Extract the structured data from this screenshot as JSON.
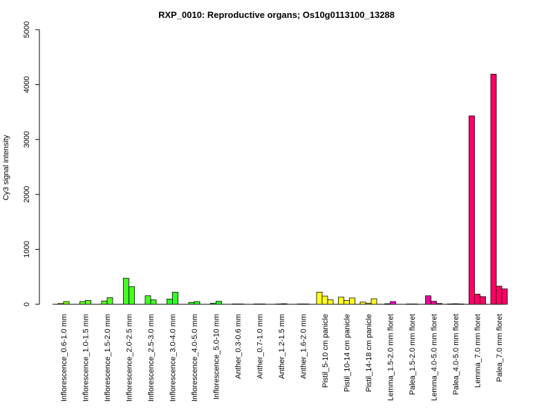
{
  "chart_data": {
    "type": "bar",
    "title": "RXP_0010: Reproductive organs; Os10g0113100_13288",
    "xlabel": "",
    "ylabel": "Cy3 signal intensity",
    "ylim": [
      0,
      5000
    ],
    "yticks": [
      0,
      1000,
      2000,
      3000,
      4000,
      5000
    ],
    "grid": false,
    "legend": "none",
    "groups": [
      {
        "label": "Inflorescence_0.6-1.0 mm",
        "color": "#7CFC00",
        "values": [
          15,
          50
        ]
      },
      {
        "label": "Inflorescence_1.0-1.5 mm",
        "color": "#66FF22",
        "values": [
          50,
          70
        ]
      },
      {
        "label": "Inflorescence_1.5-2.0 mm",
        "color": "#55FF22",
        "values": [
          60,
          120
        ]
      },
      {
        "label": "Inflorescence_2.0-2.5 mm",
        "color": "#44FF22",
        "values": [
          475,
          320
        ]
      },
      {
        "label": "Inflorescence_2.5-3.0 mm",
        "color": "#44FF22",
        "values": [
          155,
          80
        ]
      },
      {
        "label": "Inflorescence_3.0-4.0 mm",
        "color": "#33FF22",
        "values": [
          95,
          220
        ]
      },
      {
        "label": "Inflorescence_4.0-5.0 mm",
        "color": "#33FF22",
        "values": [
          35,
          50
        ]
      },
      {
        "label": "Inflorescence_5.0-10 mm",
        "color": "#22FF22",
        "values": [
          20,
          55
        ]
      },
      {
        "label": "Anther_0.3-0.6 mm",
        "color": "#FF00FF",
        "values": [
          5,
          5
        ]
      },
      {
        "label": "Anther_0.7-1.0 mm",
        "color": "#FF00FF",
        "values": [
          5,
          5
        ]
      },
      {
        "label": "Anther_1.2-1.5 mm",
        "color": "#FF00FF",
        "values": [
          5,
          10
        ]
      },
      {
        "label": "Anther_1.6-2.0 mm",
        "color": "#FF00FF",
        "values": [
          5,
          5
        ]
      },
      {
        "label": "Pistil_5-10 cm panicle",
        "color": "#FFFF22",
        "values": [
          220,
          150,
          80
        ]
      },
      {
        "label": "Pistil_10-14 cm panicle",
        "color": "#FFFF22",
        "values": [
          130,
          70,
          115
        ]
      },
      {
        "label": "Pistil_14-18 cm panicle",
        "color": "#FFFF22",
        "values": [
          40,
          20,
          100
        ]
      },
      {
        "label": "Lemma_1.5-2.0 mm floret",
        "color": "#FF00CC",
        "values": [
          10,
          50
        ]
      },
      {
        "label": "Palea_1.5-2.0 mm floret",
        "color": "#FF00CC",
        "values": [
          5,
          5
        ]
      },
      {
        "label": "Lemma_4.0-5.0 mm floret",
        "color": "#EE0099",
        "values": [
          155,
          55,
          15
        ]
      },
      {
        "label": "Palea_4.0-5.0 mm floret",
        "color": "#EE0099",
        "values": [
          5,
          10,
          5
        ]
      },
      {
        "label": "Lemma_7.0 mm floret",
        "color": "#FF0066",
        "values": [
          3430,
          185,
          140
        ]
      },
      {
        "label": "Palea_7.0 mm floret",
        "color": "#FF0066",
        "values": [
          4190,
          330,
          280
        ]
      }
    ]
  }
}
